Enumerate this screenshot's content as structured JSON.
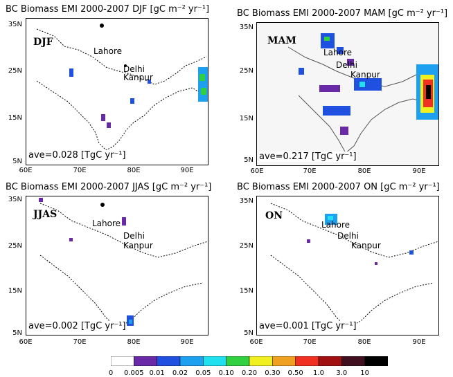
{
  "panels": [
    {
      "title": "BC Biomass EMI 2000-2007 DJF [gC m⁻² yr⁻¹]",
      "season": "DJF",
      "ave": "ave=0.028 [TgC yr⁻¹]",
      "lat_labels": [
        "35N",
        "25N",
        "15N",
        "5N"
      ],
      "lon_labels": [
        "60E",
        "70E",
        "80E",
        "90E"
      ],
      "cities": [
        "Lahore",
        "Delhi",
        "Kanpur"
      ]
    },
    {
      "title": "BC Biomass EMI 2000-2007 MAM [gC m⁻² yr⁻¹]",
      "season": "MAM",
      "ave": "ave=0.217 [TgC yr⁻¹]",
      "lat_labels": [
        "35N",
        "25N",
        "15N",
        "5N"
      ],
      "lon_labels": [
        "60E",
        "70E",
        "80E",
        "90E"
      ],
      "cities": [
        "Lahore",
        "Delhi",
        "Kanpur"
      ]
    },
    {
      "title": "BC Biomass EMI 2000-2007 JJAS [gC m⁻² yr⁻¹]",
      "season": "JJAS",
      "ave": "ave=0.002 [TgC yr⁻¹]",
      "lat_labels": [
        "35N",
        "25N",
        "15N",
        "5N"
      ],
      "lon_labels": [
        "60E",
        "70E",
        "80E",
        "90E"
      ],
      "cities": [
        "Lahore",
        "Delhi",
        "Kanpur"
      ]
    },
    {
      "title": "BC Biomass EMI 2000-2007 ON [gC m⁻² yr⁻¹]",
      "season": "ON",
      "ave": "ave=0.001 [TgC yr⁻¹]",
      "lat_labels": [
        "35N",
        "25N",
        "15N",
        "5N"
      ],
      "lon_labels": [
        "60E",
        "70E",
        "80E",
        "90E"
      ],
      "cities": [
        "Lahore",
        "Delhi",
        "Kanpur"
      ]
    }
  ],
  "colorbar": {
    "labels": [
      "0",
      "0.005",
      "0.01",
      "0.02",
      "0.05",
      "0.10",
      "0.20",
      "0.30",
      "0.50",
      "1.0",
      "3.0",
      "10"
    ],
    "colors": [
      "#ffffff",
      "#6a2aa8",
      "#2050e0",
      "#1ea0f0",
      "#20e0f0",
      "#30d040",
      "#f0f020",
      "#f0a020",
      "#f03020",
      "#a01010",
      "#401020",
      "#000000"
    ]
  }
}
